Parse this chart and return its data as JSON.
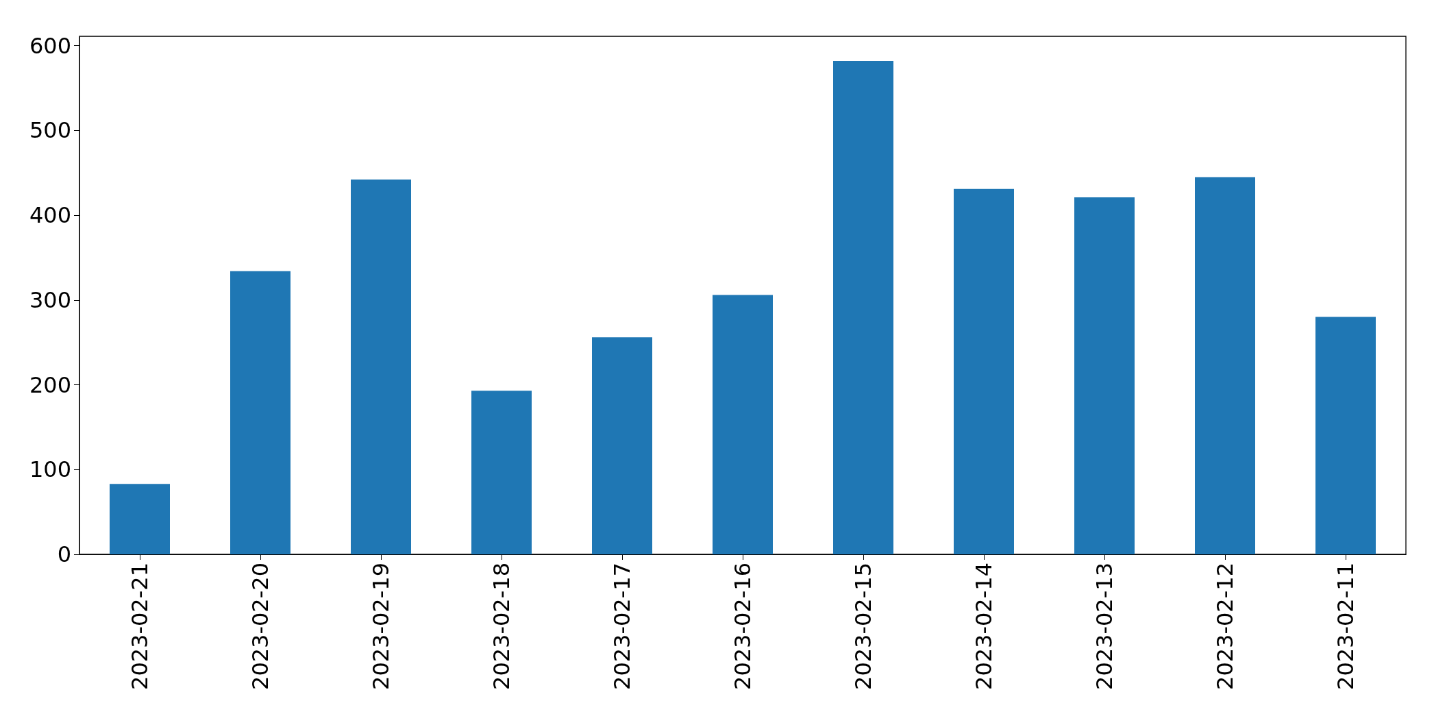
{
  "chart_data": {
    "type": "bar",
    "categories": [
      "2023-02-21",
      "2023-02-20",
      "2023-02-19",
      "2023-02-18",
      "2023-02-17",
      "2023-02-16",
      "2023-02-15",
      "2023-02-14",
      "2023-02-13",
      "2023-02-12",
      "2023-02-11"
    ],
    "values": [
      83,
      334,
      442,
      193,
      256,
      306,
      582,
      431,
      421,
      445,
      280
    ],
    "color": "#1f77b4",
    "ylim": [
      0,
      611
    ],
    "yticks": [
      0,
      100,
      200,
      300,
      400,
      500,
      600
    ]
  }
}
